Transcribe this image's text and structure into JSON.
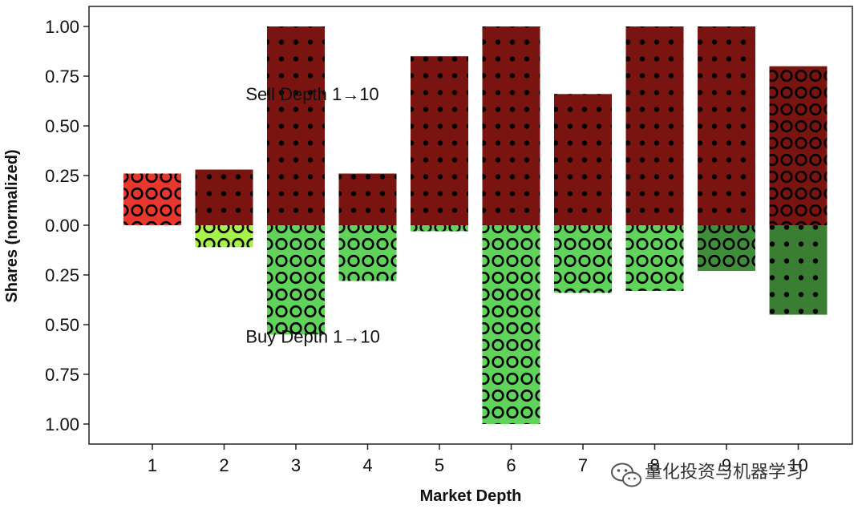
{
  "chart_data": {
    "type": "bar",
    "xlabel": "Market Depth",
    "ylabel": "Shares (normalized)",
    "categories": [
      "1",
      "2",
      "3",
      "4",
      "5",
      "6",
      "7",
      "8",
      "9",
      "10"
    ],
    "ylim": [
      -1.0,
      1.0
    ],
    "yticks": [
      {
        "value": 1.0,
        "label": "1.00"
      },
      {
        "value": 0.75,
        "label": "0.75"
      },
      {
        "value": 0.5,
        "label": "0.50"
      },
      {
        "value": 0.25,
        "label": "0.25"
      },
      {
        "value": 0.0,
        "label": "0.00"
      },
      {
        "value": -0.25,
        "label": "0.25"
      },
      {
        "value": -0.5,
        "label": "0.50"
      },
      {
        "value": -0.75,
        "label": "0.75"
      },
      {
        "value": -1.0,
        "label": "1.00"
      }
    ],
    "series": [
      {
        "values": [
          0.26,
          0.28,
          1.0,
          0.26,
          0.85,
          1.0,
          0.66,
          1.0,
          1.0,
          0.8
        ],
        "colors": [
          "#e8372c",
          "#7a1410",
          "#7a1410",
          "#7a1410",
          "#7a1410",
          "#7a1410",
          "#7a1410",
          "#7a1410",
          "#7a1410",
          "#7a1410"
        ],
        "patterns": [
          "circle",
          "dot",
          "dot",
          "dot",
          "dot",
          "dot",
          "dot",
          "dot",
          "dot",
          "circle"
        ]
      },
      {
        "values": [
          0.0,
          -0.11,
          -0.55,
          -0.28,
          -0.03,
          -1.0,
          -0.34,
          -0.33,
          -0.23,
          -0.45
        ],
        "colors": [
          "#5fd35a",
          "#a6f24a",
          "#5fd35a",
          "#5fd35a",
          "#5fd35a",
          "#5fd35a",
          "#5fd35a",
          "#5fd35a",
          "#3f8f3a",
          "#3b7d33"
        ],
        "patterns": [
          "circle",
          "circle",
          "circle",
          "circle",
          "circle",
          "circle",
          "circle",
          "circle",
          "circle",
          "dot"
        ]
      }
    ],
    "annotations": [
      {
        "text": "Sell Depth 1→10",
        "x": 2.3,
        "y": 0.63
      },
      {
        "text": "Buy Depth 1→10",
        "x": 2.3,
        "y": -0.59
      }
    ],
    "grid": false,
    "legend": "none"
  },
  "watermark": {
    "text": "量化投资与机器学习",
    "icon": "wechat-icon"
  }
}
